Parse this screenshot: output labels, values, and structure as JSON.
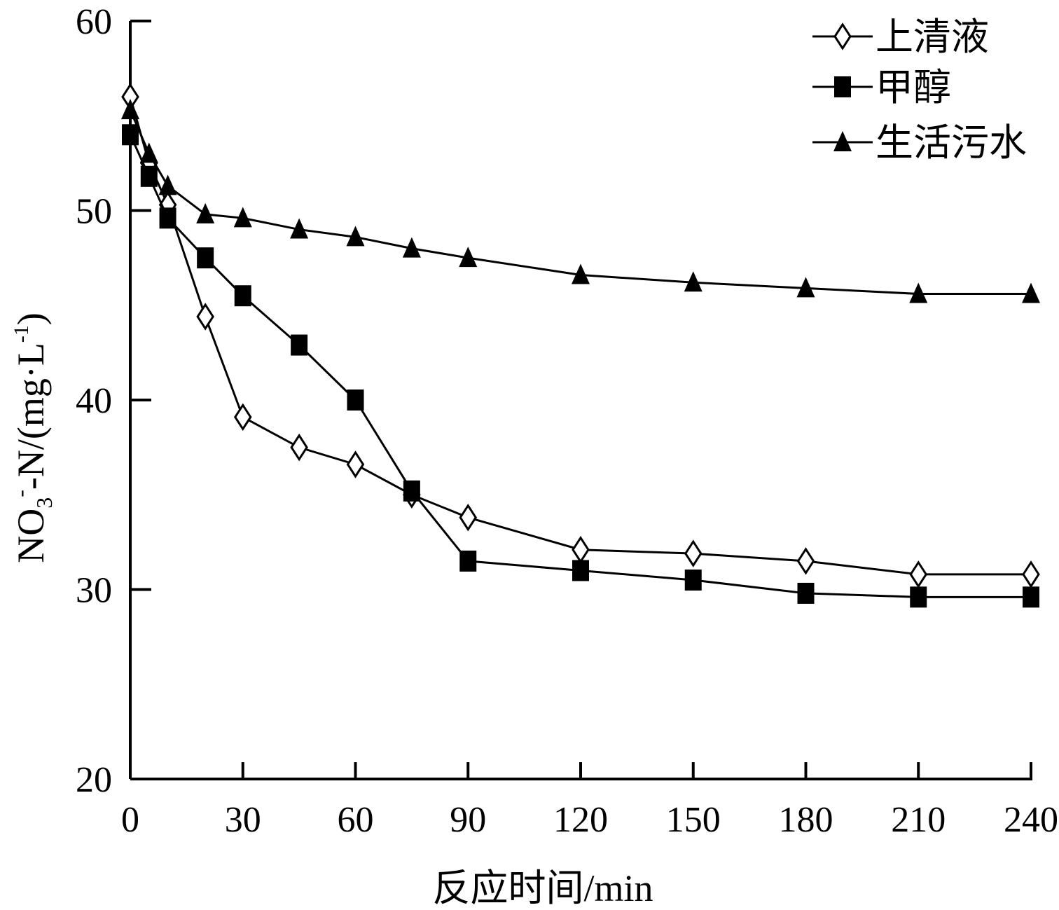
{
  "chart_data": {
    "type": "line",
    "title": "",
    "xlabel": "反应时间/min",
    "ylabel": {
      "base": "NO",
      "sub": "3",
      "sup": "-",
      "rest": "-N/(mg·L",
      "sup2": "-1",
      "end": ")"
    },
    "xlim": [
      0,
      240
    ],
    "ylim": [
      20,
      60
    ],
    "xticks": [
      0,
      30,
      60,
      90,
      120,
      150,
      180,
      210,
      240
    ],
    "yticks": [
      20,
      30,
      40,
      50,
      60
    ],
    "legend_position": "top-right",
    "grid": false,
    "series": [
      {
        "name": "上清液",
        "marker": "diamond-open",
        "x": [
          0,
          5,
          10,
          20,
          30,
          45,
          60,
          75,
          90,
          120,
          150,
          180,
          210,
          240
        ],
        "y": [
          56.0,
          52.5,
          50.3,
          44.4,
          39.1,
          37.5,
          36.6,
          35.0,
          33.8,
          32.1,
          31.9,
          31.5,
          30.8,
          30.8
        ]
      },
      {
        "name": "甲醇",
        "marker": "square-filled",
        "x": [
          0,
          5,
          10,
          20,
          30,
          45,
          60,
          75,
          90,
          120,
          150,
          180,
          210,
          240
        ],
        "y": [
          54.0,
          51.8,
          49.6,
          47.5,
          45.5,
          42.9,
          40.0,
          35.2,
          31.5,
          31.0,
          30.5,
          29.8,
          29.6,
          29.6
        ]
      },
      {
        "name": "生活污水",
        "marker": "triangle-filled",
        "x": [
          0,
          5,
          10,
          20,
          30,
          45,
          60,
          75,
          90,
          120,
          150,
          180,
          210,
          240
        ],
        "y": [
          55.3,
          53.0,
          51.3,
          49.8,
          49.6,
          49.0,
          48.6,
          48.0,
          47.5,
          46.6,
          46.2,
          45.9,
          45.6,
          45.6
        ]
      }
    ]
  }
}
